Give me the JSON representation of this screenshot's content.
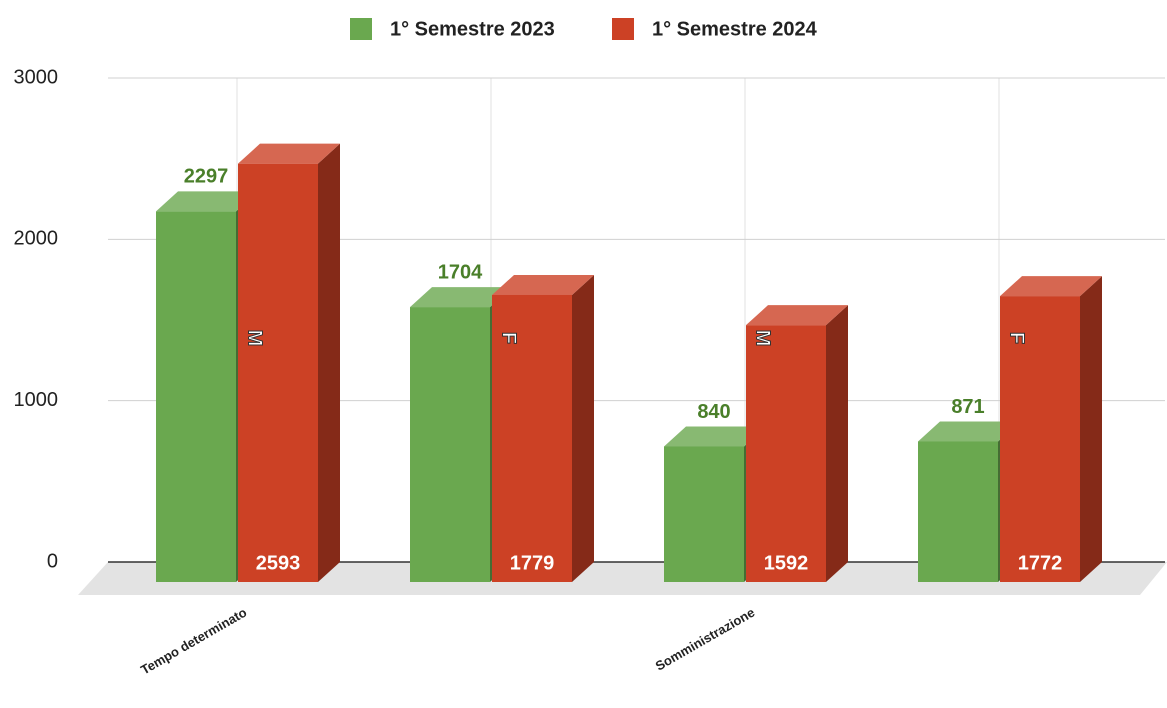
{
  "chart_data": {
    "type": "bar3d",
    "categories": [
      "Tempo determinato",
      null,
      "Somministrazione",
      null
    ],
    "bar_labels": [
      "M",
      "F",
      "M",
      "F"
    ],
    "series": [
      {
        "name": "1° Semestre 2023",
        "color": "#6aa84f",
        "values": [
          2297,
          1704,
          840,
          871
        ]
      },
      {
        "name": "1° Semestre 2024",
        "color": "#cc4125",
        "values": [
          2593,
          1779,
          1592,
          1772
        ]
      }
    ],
    "ylim": [
      0,
      3000
    ],
    "yticks": [
      0,
      1000,
      2000,
      3000
    ],
    "grid": true,
    "legend": "top"
  }
}
